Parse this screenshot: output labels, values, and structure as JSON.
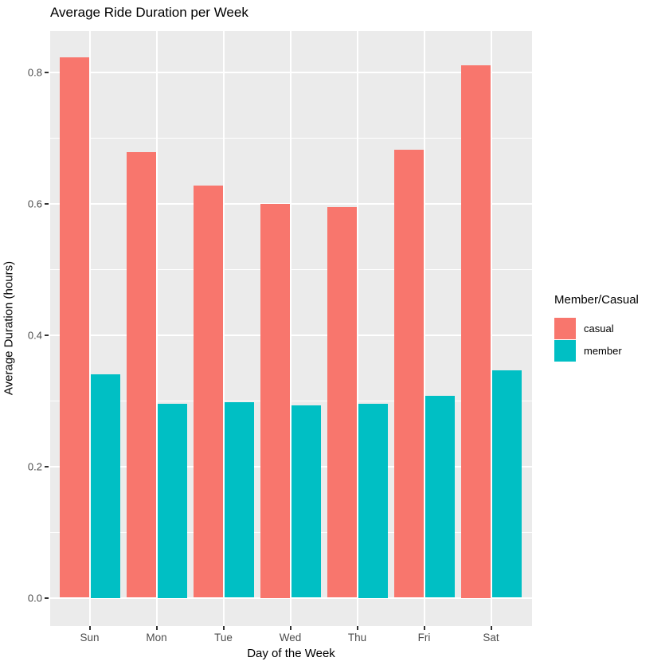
{
  "chart_data": {
    "type": "bar",
    "title": "Average Ride Duration per Week",
    "xlabel": "Day of the Week",
    "ylabel": "Average Duration (hours)",
    "categories": [
      "Sun",
      "Mon",
      "Tue",
      "Wed",
      "Thu",
      "Fri",
      "Sat"
    ],
    "series": [
      {
        "name": "casual",
        "color": "#F8766D",
        "values": [
          0.822,
          0.678,
          0.627,
          0.6,
          0.594,
          0.682,
          0.81
        ]
      },
      {
        "name": "member",
        "color": "#00BFC4",
        "values": [
          0.34,
          0.295,
          0.297,
          0.293,
          0.295,
          0.307,
          0.346
        ]
      }
    ],
    "legend_title": "Member/Casual",
    "legend_position": "right",
    "y_tick_labels": [
      "0.0",
      "0.2",
      "0.4",
      "0.6",
      "0.8"
    ],
    "y_major": [
      0.0,
      0.2,
      0.4,
      0.6,
      0.8
    ],
    "y_minor": [
      0.1,
      0.3,
      0.5,
      0.7
    ],
    "ylim": [
      -0.043,
      0.862
    ],
    "grid": true,
    "panel_bg": "#EBEBEB",
    "grid_color": "#FFFFFF",
    "tick_text_color": "#4D4D4D"
  }
}
